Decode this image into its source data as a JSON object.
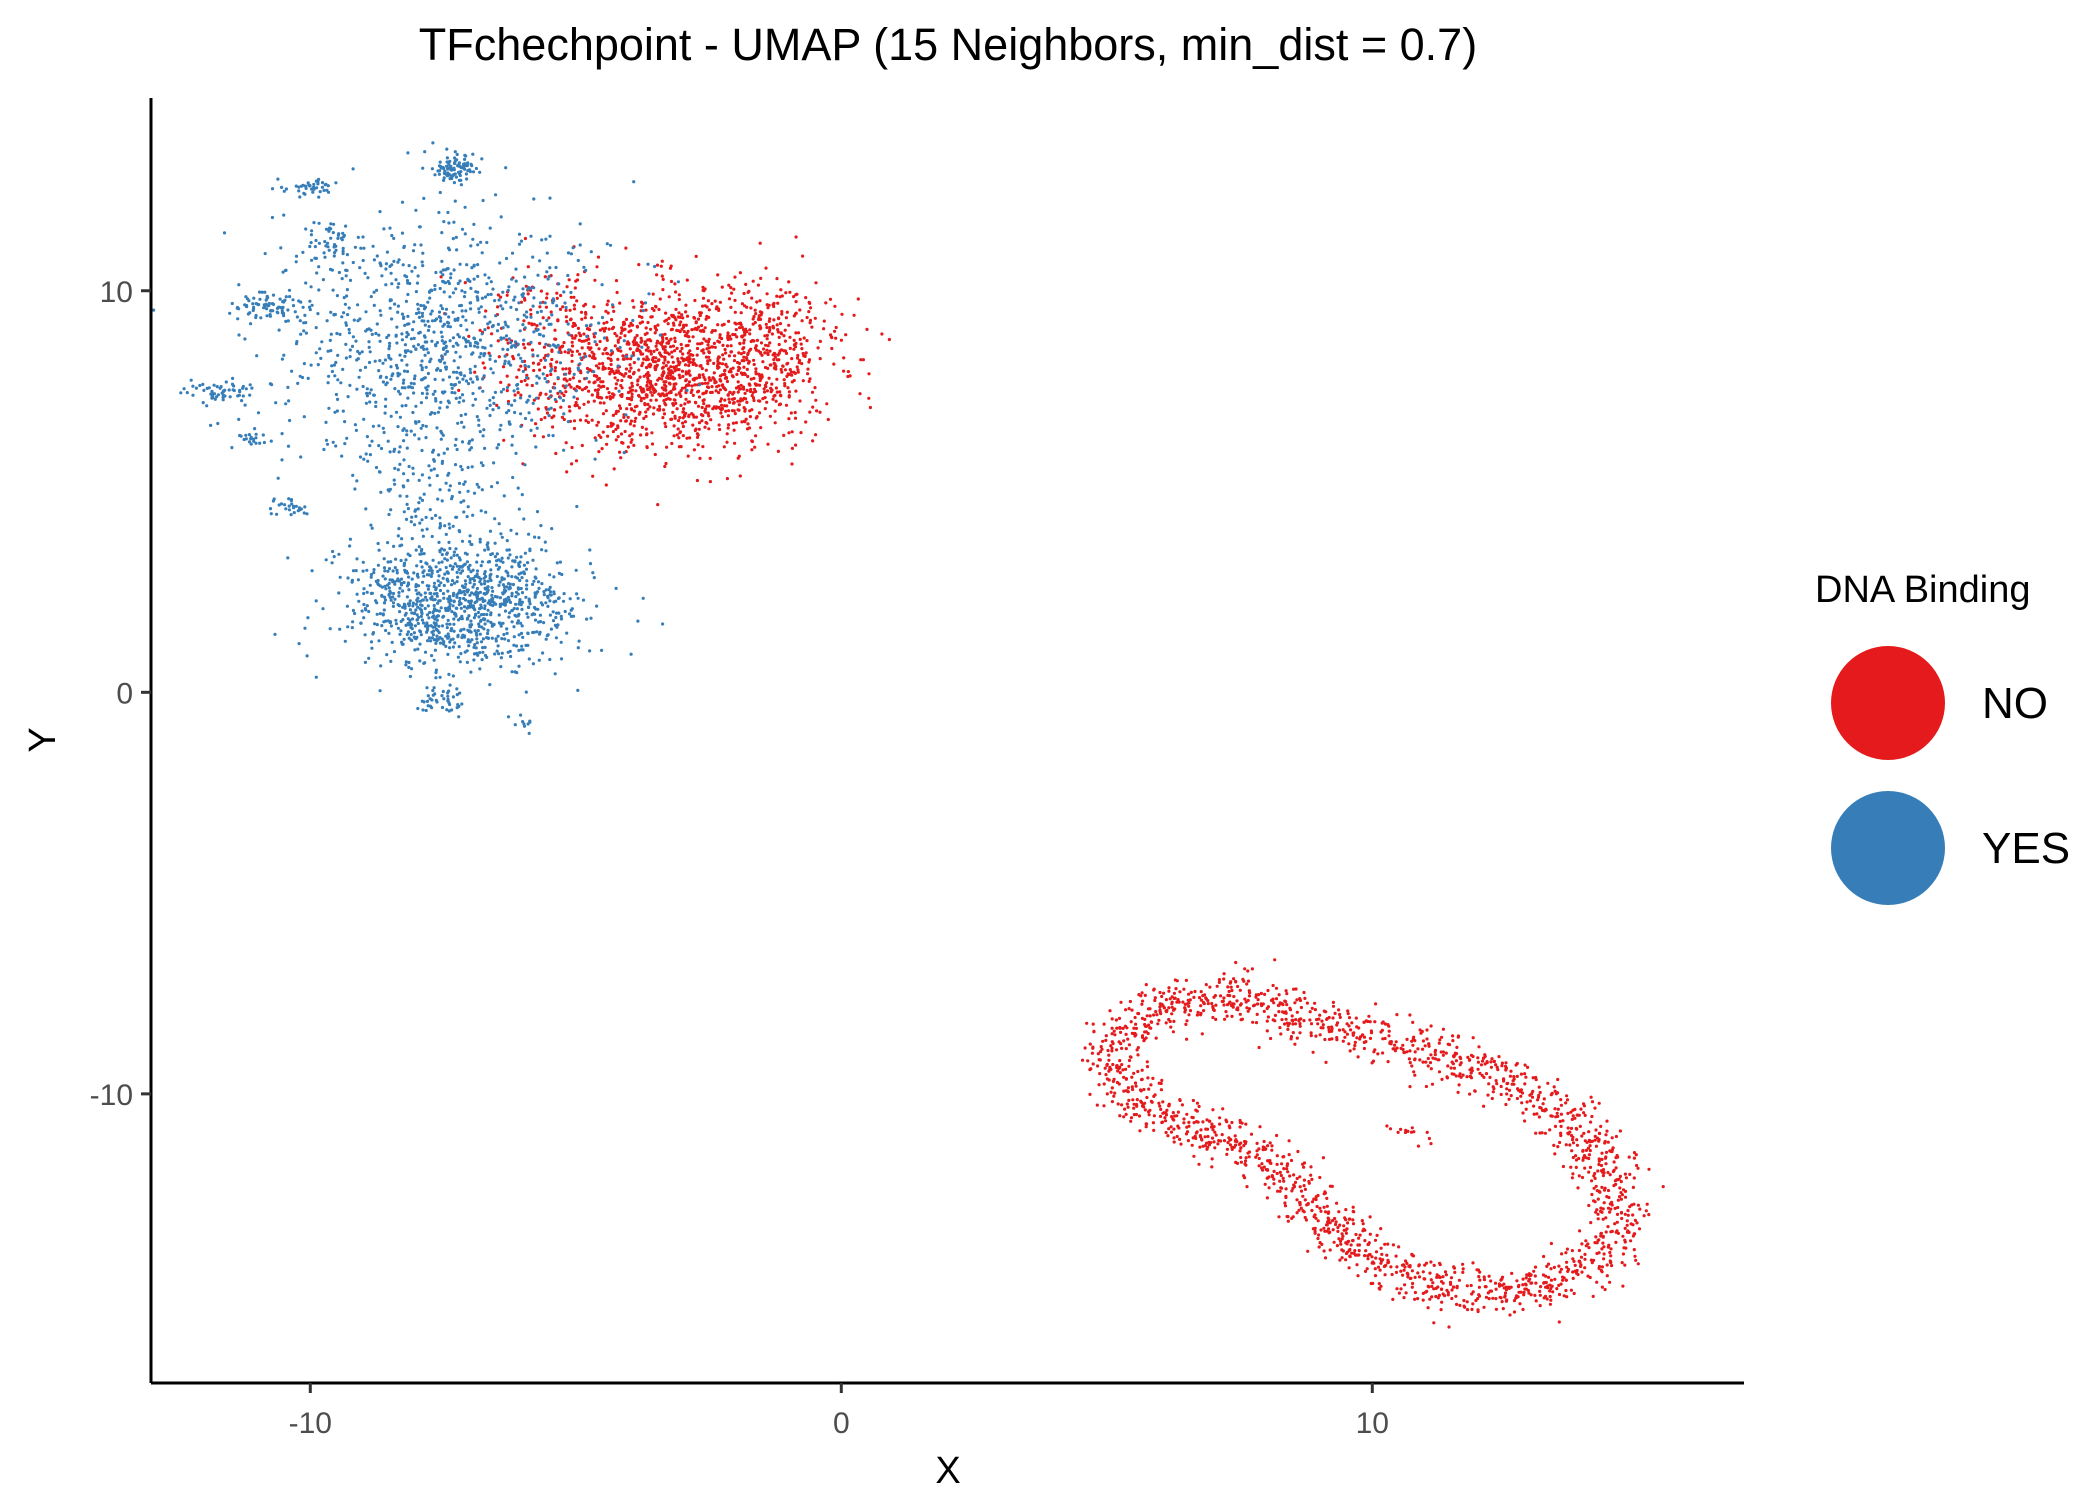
{
  "chart_data": {
    "type": "scatter",
    "title": "TFchechpoint - UMAP (15 Neighbors, min_dist = 0.7)",
    "xlabel": "X",
    "ylabel": "Y",
    "xlim": [
      -13,
      17
    ],
    "ylim": [
      -17.2,
      14.8
    ],
    "xticks": [
      -10,
      0,
      10
    ],
    "yticks": [
      -10,
      0,
      10
    ],
    "grid": false,
    "legend": {
      "title": "DNA Binding",
      "placement": "right",
      "entries": [
        {
          "label": "NO",
          "color": "#e41a1c"
        },
        {
          "label": "YES",
          "color": "#377eb8"
        }
      ]
    },
    "series": [
      {
        "name": "NO",
        "color": "#e41a1c",
        "clusters": [
          {
            "shape": "blob",
            "center": [
              -3.2,
              8.0
            ],
            "spread": [
              1.7,
              1.35
            ],
            "n": 1300
          },
          {
            "shape": "blob",
            "center": [
              -1.3,
              8.6
            ],
            "spread": [
              0.9,
              1.1
            ],
            "n": 260
          },
          {
            "shape": "blob",
            "center": [
              -5.5,
              8.8
            ],
            "spread": [
              1.0,
              1.3
            ],
            "n": 160
          },
          {
            "shape": "loop",
            "path": [
              [
                5.0,
                -9.0
              ],
              [
                5.8,
                -7.8
              ],
              [
                7.5,
                -7.6
              ],
              [
                9.5,
                -8.4
              ],
              [
                11.0,
                -9.0
              ],
              [
                12.5,
                -9.6
              ],
              [
                13.6,
                -10.6
              ],
              [
                14.4,
                -11.8
              ],
              [
                14.8,
                -13.0
              ],
              [
                14.4,
                -14.1
              ],
              [
                13.0,
                -14.9
              ],
              [
                11.5,
                -14.8
              ],
              [
                10.4,
                -14.4
              ],
              [
                9.4,
                -13.5
              ],
              [
                8.6,
                -12.5
              ],
              [
                7.7,
                -11.2
              ],
              [
                6.8,
                -10.9
              ],
              [
                5.6,
                -10.2
              ]
            ],
            "spread": 0.3,
            "n": 1900
          },
          {
            "shape": "line",
            "path": [
              [
                10.3,
                -10.7
              ],
              [
                11.0,
                -11.2
              ]
            ],
            "spread": 0.08,
            "n": 14
          }
        ]
      },
      {
        "name": "YES",
        "color": "#377eb8",
        "clusters": [
          {
            "shape": "blob",
            "center": [
              -7.6,
              8.8
            ],
            "spread": [
              2.1,
              2.0
            ],
            "n": 1000
          },
          {
            "shape": "blob",
            "center": [
              -7.2,
              2.2
            ],
            "spread": [
              1.45,
              1.1
            ],
            "n": 1050
          },
          {
            "shape": "blob",
            "center": [
              -7.7,
              5.0
            ],
            "spread": [
              0.9,
              1.2
            ],
            "n": 140
          },
          {
            "shape": "blob",
            "center": [
              -7.3,
              13.0
            ],
            "spread": [
              0.3,
              0.25
            ],
            "n": 90
          },
          {
            "shape": "blob",
            "center": [
              -10.8,
              9.6
            ],
            "spread": [
              0.35,
              0.25
            ],
            "n": 70
          },
          {
            "shape": "blob",
            "center": [
              -11.7,
              7.5
            ],
            "spread": [
              0.4,
              0.2
            ],
            "n": 55
          },
          {
            "shape": "blob",
            "center": [
              -10.1,
              12.6
            ],
            "spread": [
              0.35,
              0.15
            ],
            "n": 40
          },
          {
            "shape": "blob",
            "center": [
              -9.6,
              11.2
            ],
            "spread": [
              0.35,
              0.35
            ],
            "n": 45
          },
          {
            "shape": "blob",
            "center": [
              -10.4,
              4.6
            ],
            "spread": [
              0.25,
              0.15
            ],
            "n": 25
          },
          {
            "shape": "blob",
            "center": [
              -11.1,
              6.3
            ],
            "spread": [
              0.2,
              0.12
            ],
            "n": 20
          },
          {
            "shape": "blob",
            "center": [
              -7.5,
              -0.2
            ],
            "spread": [
              0.3,
              0.25
            ],
            "n": 40
          },
          {
            "shape": "blob",
            "center": [
              -6.0,
              -0.8
            ],
            "spread": [
              0.2,
              0.15
            ],
            "n": 10
          }
        ]
      }
    ]
  }
}
